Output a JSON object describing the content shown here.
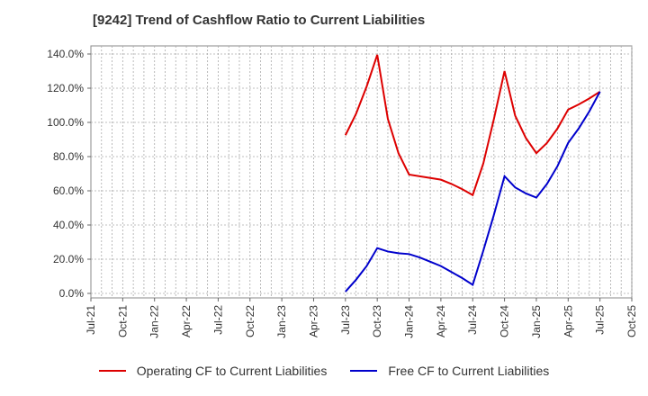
{
  "chart_data": {
    "type": "line",
    "title": "[9242]  Trend of Cashflow Ratio to Current Liabilities",
    "xlabel": "",
    "ylabel": "",
    "x": [
      "Jul-21",
      "Oct-21",
      "Jan-22",
      "Apr-22",
      "Jul-22",
      "Oct-22",
      "Jan-23",
      "Apr-23",
      "Jul-23",
      "Oct-23",
      "Jan-24",
      "Apr-24",
      "Jul-24",
      "Oct-24",
      "Jan-25",
      "Apr-25",
      "Jul-25",
      "Oct-25"
    ],
    "ylim": [
      0,
      140
    ],
    "yticks": [
      "0.0%",
      "20.0%",
      "40.0%",
      "60.0%",
      "80.0%",
      "100.0%",
      "120.0%",
      "140.0%"
    ],
    "grid": true,
    "legend_position": "bottom",
    "series": [
      {
        "name": "Operating CF to Current Liabilities",
        "color": "#dd0000",
        "points": [
          [
            "Jul-23",
            92.5
          ],
          [
            "Aug-23",
            105.0
          ],
          [
            "Sep-23",
            121.0
          ],
          [
            "Oct-23",
            139.5
          ],
          [
            "Nov-23",
            102.0
          ],
          [
            "Dec-23",
            82.0
          ],
          [
            "Jan-24",
            69.5
          ],
          [
            "Apr-24",
            66.5
          ],
          [
            "May-24",
            64.0
          ],
          [
            "Jun-24",
            61.0
          ],
          [
            "Jul-24",
            57.5
          ],
          [
            "Aug-24",
            76.0
          ],
          [
            "Sep-24",
            102.0
          ],
          [
            "Oct-24",
            130.0
          ],
          [
            "Nov-24",
            104.0
          ],
          [
            "Dec-24",
            91.0
          ],
          [
            "Jan-25",
            82.0
          ],
          [
            "Feb-25",
            88.0
          ],
          [
            "Mar-25",
            96.5
          ],
          [
            "Apr-25",
            107.5
          ],
          [
            "May-25",
            110.5
          ],
          [
            "Jun-25",
            114.0
          ],
          [
            "Jul-25",
            118.0
          ]
        ]
      },
      {
        "name": "Free CF to Current Liabilities",
        "color": "#0000cc",
        "points": [
          [
            "Jul-23",
            1.0
          ],
          [
            "Aug-23",
            8.0
          ],
          [
            "Sep-23",
            16.0
          ],
          [
            "Oct-23",
            26.5
          ],
          [
            "Nov-23",
            24.5
          ],
          [
            "Dec-23",
            23.5
          ],
          [
            "Jan-24",
            23.0
          ],
          [
            "Feb-24",
            21.0
          ],
          [
            "Mar-24",
            18.5
          ],
          [
            "Apr-24",
            16.0
          ],
          [
            "May-24",
            12.5
          ],
          [
            "Jun-24",
            9.0
          ],
          [
            "Jul-24",
            5.0
          ],
          [
            "Aug-24",
            25.0
          ],
          [
            "Sep-24",
            46.0
          ],
          [
            "Oct-24",
            68.5
          ],
          [
            "Nov-24",
            62.0
          ],
          [
            "Dec-24",
            58.5
          ],
          [
            "Jan-25",
            56.0
          ],
          [
            "Feb-25",
            64.0
          ],
          [
            "Mar-25",
            74.5
          ],
          [
            "Apr-25",
            88.0
          ],
          [
            "May-25",
            96.5
          ],
          [
            "Jun-25",
            106.5
          ],
          [
            "Jul-25",
            118.0
          ]
        ]
      }
    ]
  }
}
